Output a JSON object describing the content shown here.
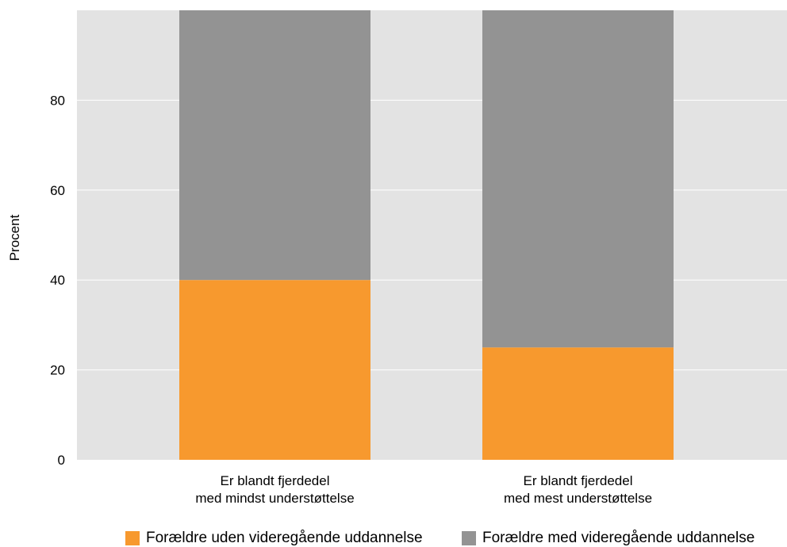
{
  "chart_data": {
    "type": "bar",
    "stacked": true,
    "categories": [
      [
        "Er blandt fjerdedel",
        "med mindst understøttelse"
      ],
      [
        "Er blandt fjerdedel",
        "med mest understøttelse"
      ]
    ],
    "series": [
      {
        "name": "Forældre uden videregående uddannelse",
        "values": [
          40,
          25
        ],
        "color": "#f7992e"
      },
      {
        "name": "Forældre med videregående uddannelse",
        "values": [
          60,
          75
        ],
        "color": "#939393"
      }
    ],
    "title": "",
    "xlabel": "",
    "ylabel": "Procent",
    "ylim": [
      0,
      100
    ],
    "yticks": [
      0,
      20,
      40,
      60,
      80
    ],
    "grid": true,
    "legend_position": "bottom",
    "background_color": "#e3e3e3"
  }
}
